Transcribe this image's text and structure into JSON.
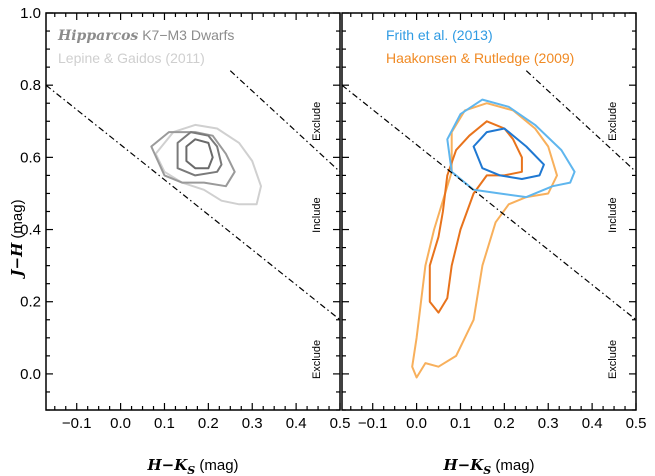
{
  "chart_data": [
    {
      "type": "contour",
      "panel": "left",
      "xlabel": {
        "main": "H−K",
        "sub": "S",
        "unit": " (mag)"
      },
      "ylabel": {
        "main": "J−H",
        "unit": " (mag)"
      },
      "xlim": [
        -0.17,
        0.5
      ],
      "ylim": [
        -0.1,
        1.0
      ],
      "xticks": [
        "−0.1",
        "0.0",
        "0.1",
        "0.2",
        "0.3",
        "0.4",
        "0.5"
      ],
      "xtick_values": [
        -0.1,
        0.0,
        0.1,
        0.2,
        0.3,
        0.4,
        0.5
      ],
      "yticks": [
        "0.0",
        "0.2",
        "0.4",
        "0.6",
        "0.8",
        "1.0"
      ],
      "ytick_values": [
        0.0,
        0.2,
        0.4,
        0.6,
        0.8,
        1.0
      ],
      "legend": [
        {
          "label_italic": "Hipparcos",
          "label": " K7−M3 Dwarfs",
          "color": "#8c8c8c"
        },
        {
          "label": "Lepine & Gaidos (2011)",
          "color": "#cfcfcf"
        }
      ],
      "boundary_lines": [
        {
          "points": [
            [
              -0.17,
              0.8
            ],
            [
              0.5,
              0.15
            ]
          ]
        },
        {
          "points": [
            [
              0.25,
              0.84
            ],
            [
              0.5,
              0.56
            ]
          ]
        }
      ],
      "zone_labels": [
        {
          "text": "Exclude",
          "x": 0.455,
          "y": 0.7
        },
        {
          "text": "Include",
          "x": 0.455,
          "y": 0.44
        },
        {
          "text": "Exclude",
          "x": 0.455,
          "y": 0.04
        }
      ],
      "series": [
        {
          "color": "#d0d0d0",
          "width": 2.0,
          "points": [
            [
              0.08,
              0.61
            ],
            [
              0.12,
              0.67
            ],
            [
              0.17,
              0.69
            ],
            [
              0.22,
              0.68
            ],
            [
              0.27,
              0.64
            ],
            [
              0.3,
              0.59
            ],
            [
              0.32,
              0.52
            ],
            [
              0.31,
              0.47
            ],
            [
              0.27,
              0.47
            ],
            [
              0.23,
              0.48
            ],
            [
              0.19,
              0.51
            ],
            [
              0.14,
              0.53
            ],
            [
              0.1,
              0.56
            ],
            [
              0.08,
              0.61
            ]
          ]
        },
        {
          "color": "#9a9a9a",
          "width": 2.0,
          "points": [
            [
              0.07,
              0.63
            ],
            [
              0.11,
              0.67
            ],
            [
              0.17,
              0.67
            ],
            [
              0.21,
              0.66
            ],
            [
              0.24,
              0.61
            ],
            [
              0.26,
              0.56
            ],
            [
              0.24,
              0.52
            ],
            [
              0.19,
              0.53
            ],
            [
              0.14,
              0.53
            ],
            [
              0.1,
              0.55
            ],
            [
              0.07,
              0.63
            ]
          ]
        },
        {
          "color": "#7a7a7a",
          "width": 2.0,
          "points": [
            [
              0.13,
              0.64
            ],
            [
              0.16,
              0.67
            ],
            [
              0.2,
              0.66
            ],
            [
              0.22,
              0.63
            ],
            [
              0.23,
              0.58
            ],
            [
              0.22,
              0.56
            ],
            [
              0.17,
              0.55
            ],
            [
              0.13,
              0.57
            ],
            [
              0.13,
              0.64
            ]
          ]
        },
        {
          "color": "#6a6a6a",
          "width": 2.0,
          "points": [
            [
              0.15,
              0.63
            ],
            [
              0.17,
              0.65
            ],
            [
              0.2,
              0.64
            ],
            [
              0.21,
              0.6
            ],
            [
              0.2,
              0.57
            ],
            [
              0.17,
              0.57
            ],
            [
              0.15,
              0.59
            ],
            [
              0.15,
              0.63
            ]
          ]
        }
      ]
    },
    {
      "type": "contour",
      "panel": "right",
      "xlabel": {
        "main": "H−K",
        "sub": "S",
        "unit": " (mag)"
      },
      "xlim": [
        -0.17,
        0.5
      ],
      "ylim": [
        -0.1,
        1.0
      ],
      "xticks": [
        "−0.1",
        "0.0",
        "0.1",
        "0.2",
        "0.3",
        "0.4",
        "0.5"
      ],
      "xtick_values": [
        -0.1,
        0.0,
        0.1,
        0.2,
        0.3,
        0.4,
        0.5
      ],
      "legend": [
        {
          "label": "Frith et al. (2013)",
          "color": "#2f9be3"
        },
        {
          "label": "Haakonsen & Rutledge (2009)",
          "color": "#f08a24"
        }
      ],
      "boundary_lines": [
        {
          "points": [
            [
              -0.17,
              0.8
            ],
            [
              0.5,
              0.15
            ]
          ]
        },
        {
          "points": [
            [
              0.25,
              0.84
            ],
            [
              0.5,
              0.56
            ]
          ]
        }
      ],
      "zone_labels": [
        {
          "text": "Exclude",
          "x": 0.455,
          "y": 0.7
        },
        {
          "text": "Include",
          "x": 0.455,
          "y": 0.44
        },
        {
          "text": "Exclude",
          "x": 0.455,
          "y": 0.04
        }
      ],
      "series": [
        {
          "color": "#f8b05c",
          "width": 2.0,
          "points": [
            [
              0.08,
              0.67
            ],
            [
              0.11,
              0.73
            ],
            [
              0.16,
              0.75
            ],
            [
              0.22,
              0.73
            ],
            [
              0.27,
              0.68
            ],
            [
              0.3,
              0.63
            ],
            [
              0.32,
              0.55
            ],
            [
              0.3,
              0.5
            ],
            [
              0.25,
              0.49
            ],
            [
              0.21,
              0.47
            ],
            [
              0.18,
              0.42
            ],
            [
              0.15,
              0.3
            ],
            [
              0.13,
              0.15
            ],
            [
              0.09,
              0.05
            ],
            [
              0.05,
              0.02
            ],
            [
              0.02,
              0.03
            ],
            [
              0.0,
              -0.01
            ],
            [
              -0.01,
              0.02
            ],
            [
              0.0,
              0.1
            ],
            [
              0.01,
              0.2
            ],
            [
              0.02,
              0.3
            ],
            [
              0.04,
              0.4
            ],
            [
              0.06,
              0.48
            ],
            [
              0.08,
              0.56
            ],
            [
              0.08,
              0.67
            ]
          ]
        },
        {
          "color": "#e8731c",
          "width": 2.0,
          "points": [
            [
              0.09,
              0.62
            ],
            [
              0.12,
              0.66
            ],
            [
              0.16,
              0.7
            ],
            [
              0.2,
              0.68
            ],
            [
              0.22,
              0.65
            ],
            [
              0.24,
              0.6
            ],
            [
              0.24,
              0.56
            ],
            [
              0.2,
              0.55
            ],
            [
              0.16,
              0.55
            ],
            [
              0.13,
              0.5
            ],
            [
              0.1,
              0.4
            ],
            [
              0.08,
              0.3
            ],
            [
              0.07,
              0.21
            ],
            [
              0.05,
              0.17
            ],
            [
              0.03,
              0.2
            ],
            [
              0.03,
              0.3
            ],
            [
              0.05,
              0.38
            ],
            [
              0.06,
              0.45
            ],
            [
              0.07,
              0.55
            ],
            [
              0.09,
              0.62
            ]
          ]
        },
        {
          "color": "#5fb6ee",
          "width": 2.0,
          "points": [
            [
              0.07,
              0.65
            ],
            [
              0.1,
              0.72
            ],
            [
              0.15,
              0.76
            ],
            [
              0.21,
              0.74
            ],
            [
              0.27,
              0.69
            ],
            [
              0.33,
              0.62
            ],
            [
              0.36,
              0.56
            ],
            [
              0.35,
              0.53
            ],
            [
              0.31,
              0.52
            ],
            [
              0.25,
              0.49
            ],
            [
              0.19,
              0.5
            ],
            [
              0.13,
              0.51
            ],
            [
              0.08,
              0.56
            ],
            [
              0.07,
              0.65
            ]
          ]
        },
        {
          "color": "#1f78d2",
          "width": 2.0,
          "points": [
            [
              0.13,
              0.63
            ],
            [
              0.16,
              0.67
            ],
            [
              0.2,
              0.68
            ],
            [
              0.25,
              0.63
            ],
            [
              0.29,
              0.58
            ],
            [
              0.28,
              0.55
            ],
            [
              0.24,
              0.54
            ],
            [
              0.19,
              0.55
            ],
            [
              0.15,
              0.57
            ],
            [
              0.13,
              0.63
            ]
          ]
        }
      ]
    }
  ]
}
